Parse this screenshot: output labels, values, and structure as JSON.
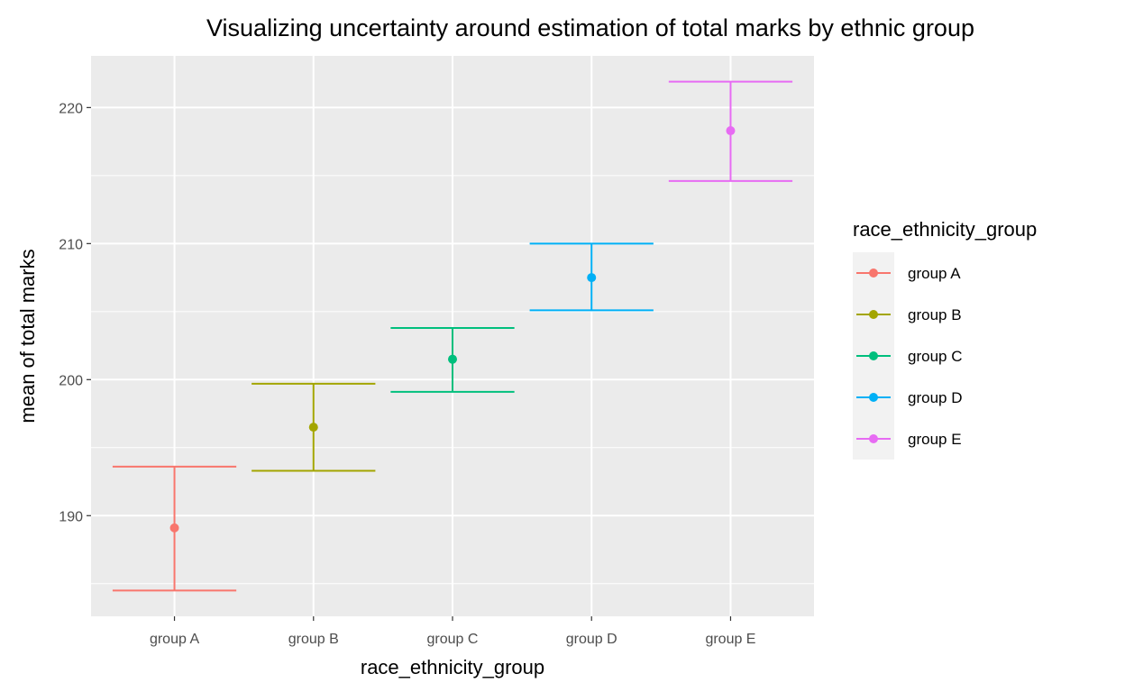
{
  "chart_data": {
    "type": "errorbar",
    "title": "Visualizing uncertainty around estimation of total marks by ethnic group",
    "xlabel": "race_ethnicity_group",
    "ylabel": "mean of total marks",
    "categories": [
      "group A",
      "group B",
      "group C",
      "group D",
      "group E"
    ],
    "series": [
      {
        "name": "group A",
        "mean": 189.1,
        "lower": 184.5,
        "upper": 193.6,
        "color": "#F8766D"
      },
      {
        "name": "group B",
        "mean": 196.5,
        "lower": 193.3,
        "upper": 199.7,
        "color": "#A3A500"
      },
      {
        "name": "group C",
        "mean": 201.5,
        "lower": 199.1,
        "upper": 203.8,
        "color": "#00BF7D"
      },
      {
        "name": "group D",
        "mean": 207.5,
        "lower": 205.1,
        "upper": 210.0,
        "color": "#00B0F6"
      },
      {
        "name": "group E",
        "mean": 218.3,
        "lower": 214.6,
        "upper": 221.9,
        "color": "#E76BF3"
      }
    ],
    "yticks": [
      190,
      200,
      210,
      220
    ],
    "ylim": [
      182.6,
      223.8
    ],
    "grid": true,
    "legend": {
      "title": "race_ethnicity_group",
      "placement": "right"
    }
  }
}
